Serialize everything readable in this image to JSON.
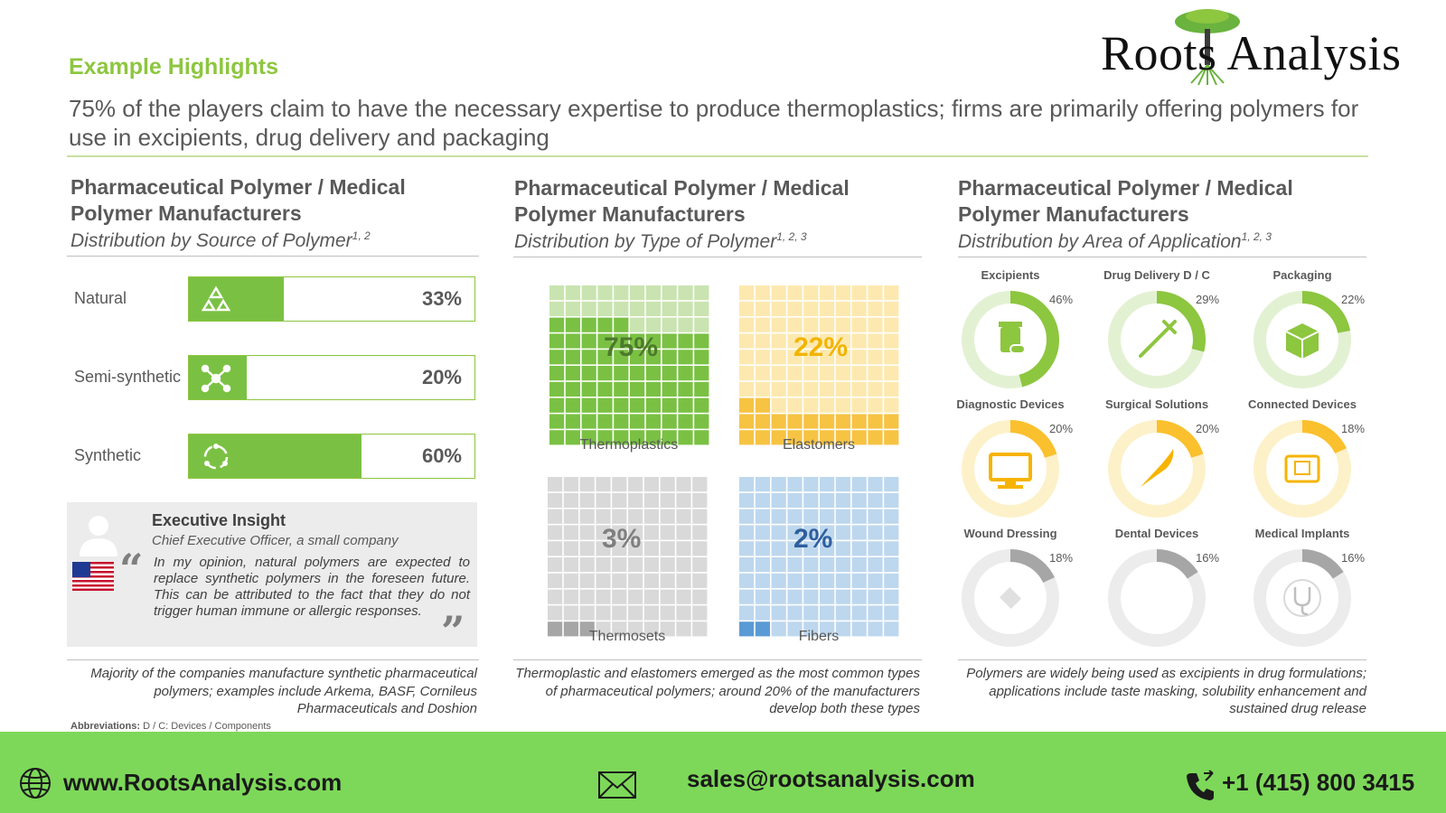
{
  "header": {
    "kicker": "Example Highlights",
    "headline": "75% of the players claim to have the necessary expertise to produce thermoplastics; firms are primarily offering polymers for use in excipients, drug delivery and packaging",
    "logo_text": "Roots Analysis"
  },
  "colors": {
    "accent_green": "#7ac143",
    "light_green": "#8dc63f",
    "yellow": "#f6c343",
    "gray": "#a6a6a6",
    "blue": "#9dc3e6",
    "footer_green": "#7dd859"
  },
  "panels": [
    {
      "title": "Pharmaceutical Polymer / Medical Polymer Manufacturers",
      "subtitle": "Distribution by Source of Polymer",
      "subtitle_sup": "1, 2",
      "note": "Majority of the companies manufacture synthetic pharmaceutical polymers; examples include Arkema, BASF, Cornileus Pharmaceuticals and Doshion"
    },
    {
      "title": "Pharmaceutical Polymer / Medical Polymer Manufacturers",
      "subtitle": "Distribution by Type of Polymer",
      "subtitle_sup": "1, 2, 3",
      "note": "Thermoplastic and elastomers emerged as the most common types of pharmaceutical polymers; around 20% of the manufacturers develop both these types"
    },
    {
      "title": "Pharmaceutical Polymer / Medical Polymer Manufacturers",
      "subtitle": "Distribution by Area of Application",
      "subtitle_sup": "1, 2, 3",
      "note": "Polymers are widely being used as excipients in drug formulations; applications include taste masking, solubility enhancement and sustained drug release"
    }
  ],
  "chart_data": [
    {
      "type": "bar",
      "categories": [
        "Natural",
        "Semi-synthetic",
        "Synthetic"
      ],
      "values": [
        33,
        20,
        60
      ],
      "value_labels": [
        "33%",
        "20%",
        "60%"
      ],
      "icons": [
        "recycle-icon",
        "molecule-icon",
        "cycle-icon"
      ],
      "ylim": [
        0,
        100
      ]
    },
    {
      "type": "waffle",
      "categories": [
        "Thermoplastics",
        "Elastomers",
        "Thermosets",
        "Fibers"
      ],
      "values": [
        75,
        22,
        3,
        2
      ],
      "value_labels": [
        "75%",
        "22%",
        "3%",
        "2%"
      ],
      "colors": [
        "#7ac143",
        "#f6c343",
        "#a6a6a6",
        "#5b9bd5"
      ]
    },
    {
      "type": "donut",
      "categories": [
        "Excipients",
        "Drug Delivery D / C",
        "Packaging",
        "Diagnostic Devices",
        "Surgical Solutions",
        "Connected Devices",
        "Wound Dressing",
        "Dental Devices",
        "Medical Implants"
      ],
      "values": [
        46,
        29,
        22,
        20,
        20,
        18,
        18,
        16,
        16
      ],
      "value_labels": [
        "46%",
        "29%",
        "22%",
        "20%",
        "20%",
        "18%",
        "18%",
        "16%",
        "16%"
      ],
      "icons": [
        "medicine-bottle-icon",
        "syringe-icon",
        "package-icon",
        "monitor-icon",
        "scalpel-icon",
        "tablet-icon",
        "bandage-icon",
        "tooth-icon",
        "stethoscope-icon"
      ]
    }
  ],
  "insight": {
    "title": "Executive Insight",
    "role": "Chief Executive Officer, a small company",
    "quote": "In my opinion, natural polymers are expected to replace synthetic polymers in the foreseen future. This can be attributed to the fact that they do not trigger human immune or allergic responses."
  },
  "abbreviations": {
    "label": "Abbreviations:",
    "text": "D / C: Devices / Components"
  },
  "footer": {
    "website": "www.RootsAnalysis.com",
    "email": "sales@rootsanalysis.com",
    "phone": "+1 (415) 800 3415"
  }
}
